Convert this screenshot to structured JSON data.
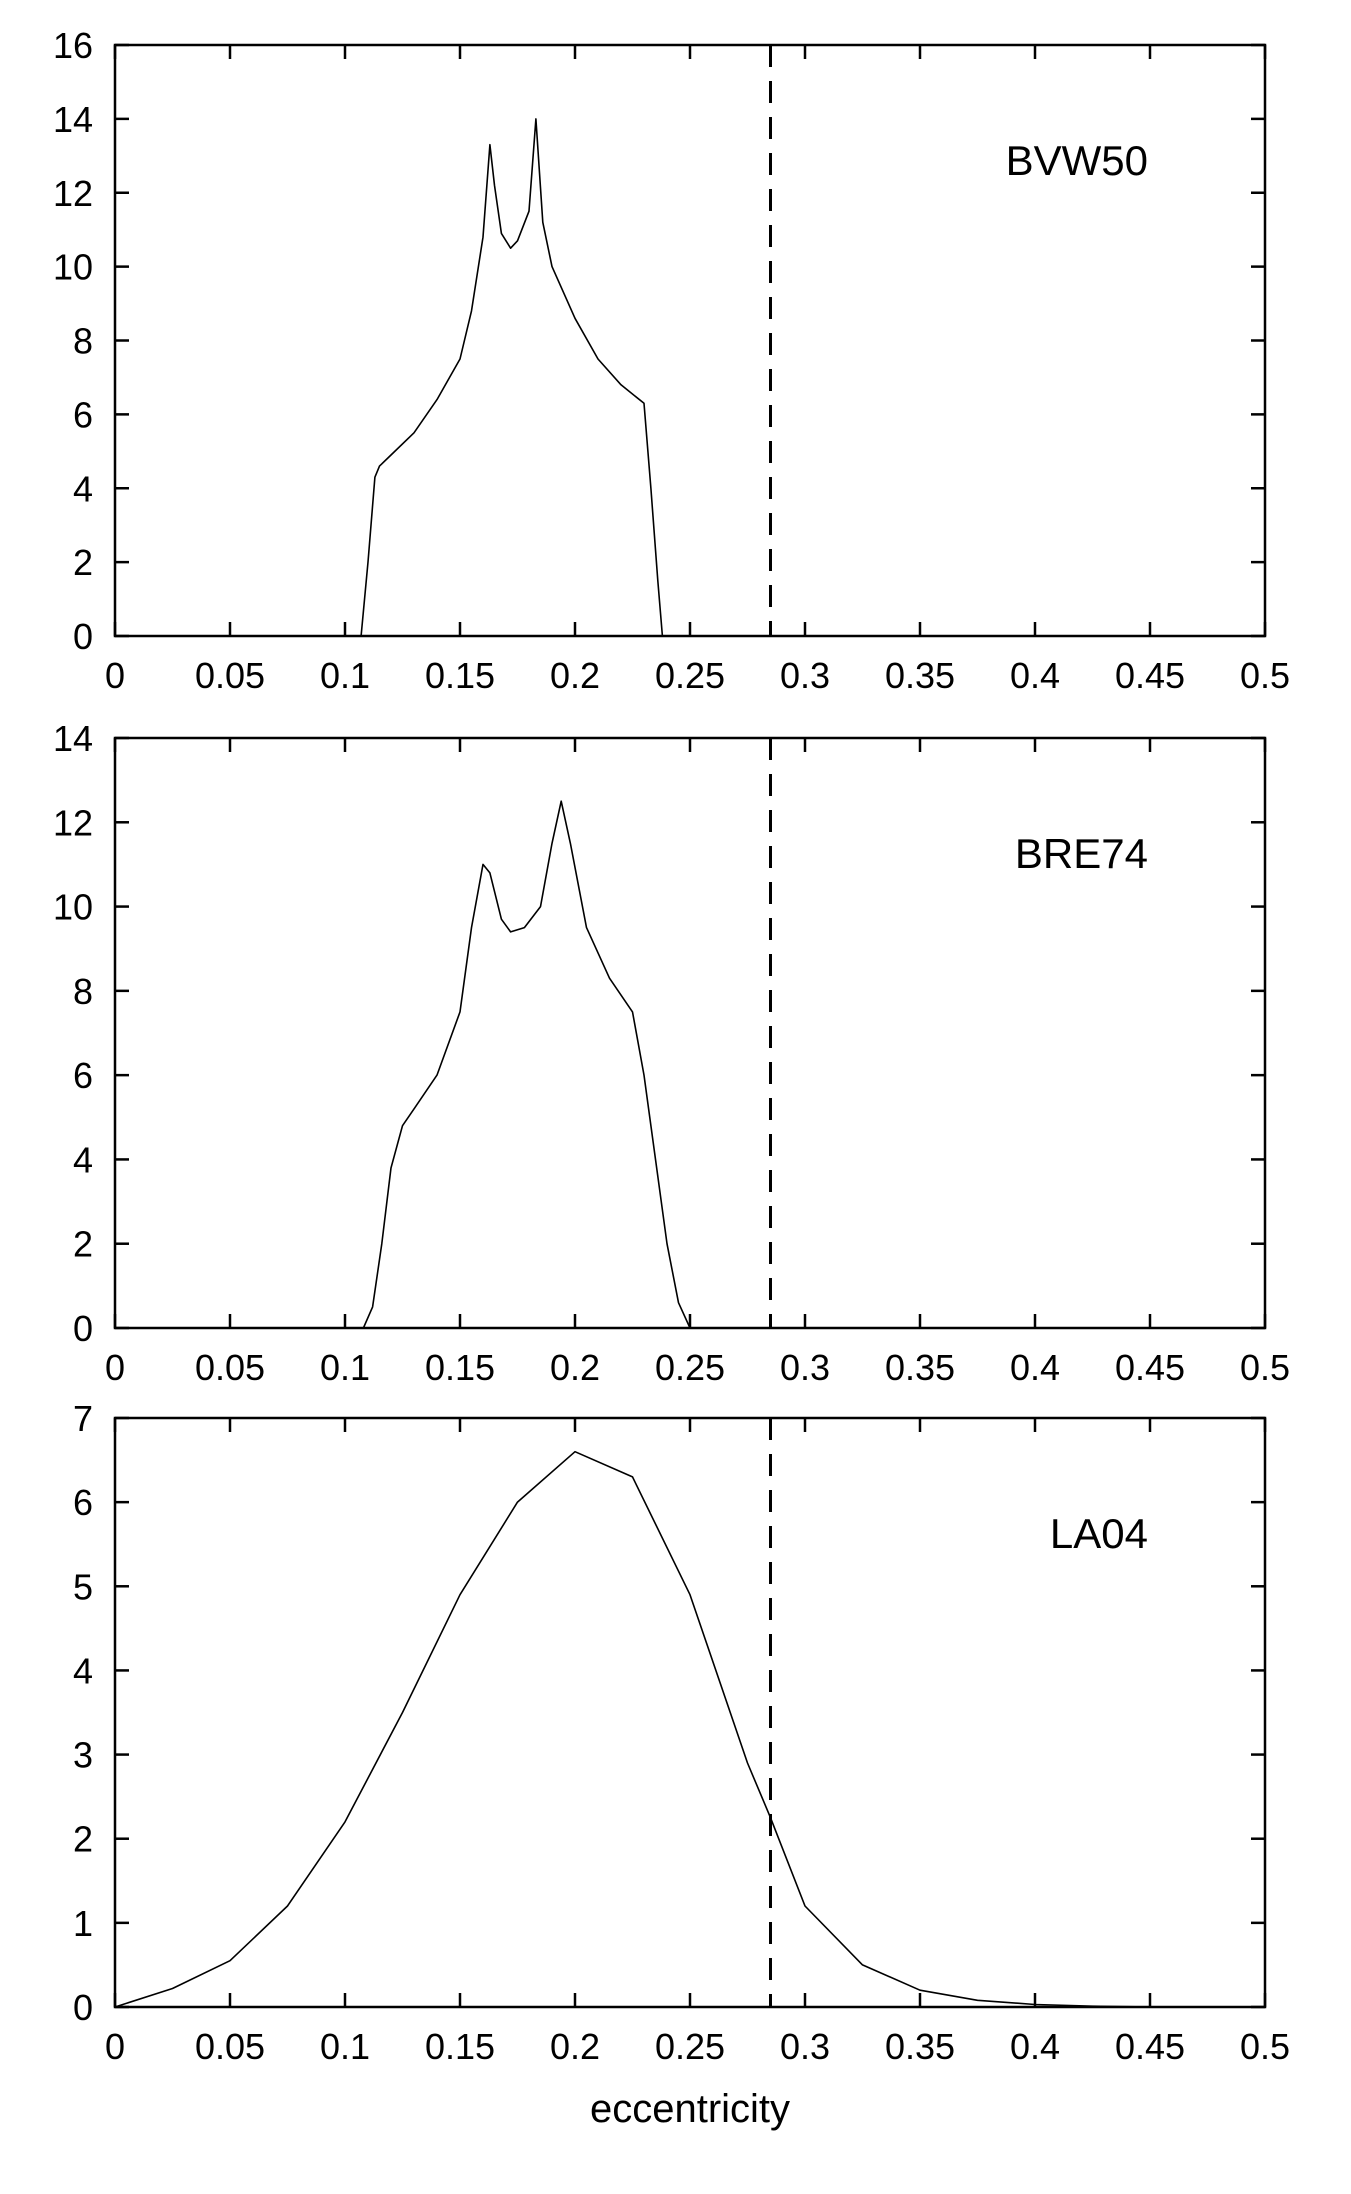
{
  "chart_data": [
    {
      "type": "line",
      "label": "BVW50",
      "xlabel": "",
      "ylabel": "",
      "xlim": [
        0,
        0.5
      ],
      "ylim": [
        0,
        16
      ],
      "xticks": [
        "0",
        "0.05",
        "0.1",
        "0.15",
        "0.2",
        "0.25",
        "0.3",
        "0.35",
        "0.4",
        "0.45",
        "0.5"
      ],
      "yticks": [
        "0",
        "2",
        "4",
        "6",
        "8",
        "10",
        "12",
        "14",
        "16"
      ],
      "reference_line_x": 0.285,
      "grid": false,
      "series": [
        {
          "x": [
            0,
            0.107,
            0.11,
            0.113,
            0.115,
            0.12,
            0.13,
            0.14,
            0.15,
            0.155,
            0.16,
            0.163,
            0.165,
            0.168,
            0.172,
            0.175,
            0.18,
            0.183,
            0.186,
            0.19,
            0.2,
            0.21,
            0.22,
            0.23,
            0.233,
            0.236,
            0.238,
            0.5
          ],
          "y": [
            0,
            0,
            2.0,
            4.3,
            4.6,
            4.9,
            5.5,
            6.4,
            7.5,
            8.8,
            10.8,
            13.3,
            12.2,
            10.9,
            10.5,
            10.7,
            11.5,
            14.0,
            11.2,
            10.0,
            8.6,
            7.5,
            6.8,
            6.3,
            4.0,
            1.5,
            0,
            0
          ]
        }
      ]
    },
    {
      "type": "line",
      "label": "BRE74",
      "xlabel": "",
      "ylabel": "",
      "xlim": [
        0,
        0.5
      ],
      "ylim": [
        0,
        14
      ],
      "xticks": [
        "0",
        "0.05",
        "0.1",
        "0.15",
        "0.2",
        "0.25",
        "0.3",
        "0.35",
        "0.4",
        "0.45",
        "0.5"
      ],
      "yticks": [
        "0",
        "2",
        "4",
        "6",
        "8",
        "10",
        "12",
        "14"
      ],
      "reference_line_x": 0.285,
      "grid": false,
      "series": [
        {
          "x": [
            0,
            0.108,
            0.112,
            0.116,
            0.12,
            0.125,
            0.13,
            0.14,
            0.15,
            0.155,
            0.16,
            0.163,
            0.168,
            0.172,
            0.178,
            0.185,
            0.19,
            0.194,
            0.198,
            0.205,
            0.215,
            0.225,
            0.23,
            0.235,
            0.24,
            0.245,
            0.25,
            0.5
          ],
          "y": [
            0,
            0,
            0.5,
            2.0,
            3.8,
            4.8,
            5.2,
            6.0,
            7.5,
            9.5,
            11.0,
            10.8,
            9.7,
            9.4,
            9.5,
            10.0,
            11.5,
            12.5,
            11.5,
            9.5,
            8.3,
            7.5,
            6.0,
            4.0,
            2.0,
            0.6,
            0,
            0
          ]
        }
      ]
    },
    {
      "type": "line",
      "label": "LA04",
      "xlabel": "eccentricity",
      "ylabel": "",
      "xlim": [
        0,
        0.5
      ],
      "ylim": [
        0,
        7
      ],
      "xticks": [
        "0",
        "0.05",
        "0.1",
        "0.15",
        "0.2",
        "0.25",
        "0.3",
        "0.35",
        "0.4",
        "0.45",
        "0.5"
      ],
      "yticks": [
        "0",
        "1",
        "2",
        "3",
        "4",
        "5",
        "6",
        "7"
      ],
      "reference_line_x": 0.285,
      "grid": false,
      "series": [
        {
          "x": [
            0,
            0.025,
            0.05,
            0.075,
            0.1,
            0.125,
            0.15,
            0.175,
            0.2,
            0.225,
            0.25,
            0.275,
            0.285,
            0.3,
            0.325,
            0.35,
            0.375,
            0.4,
            0.425,
            0.45,
            0.5
          ],
          "y": [
            0,
            0.22,
            0.55,
            1.2,
            2.2,
            3.5,
            4.9,
            6.0,
            6.6,
            6.3,
            4.9,
            2.9,
            2.25,
            1.2,
            0.5,
            0.2,
            0.08,
            0.03,
            0.01,
            0.0,
            0
          ]
        }
      ]
    }
  ]
}
